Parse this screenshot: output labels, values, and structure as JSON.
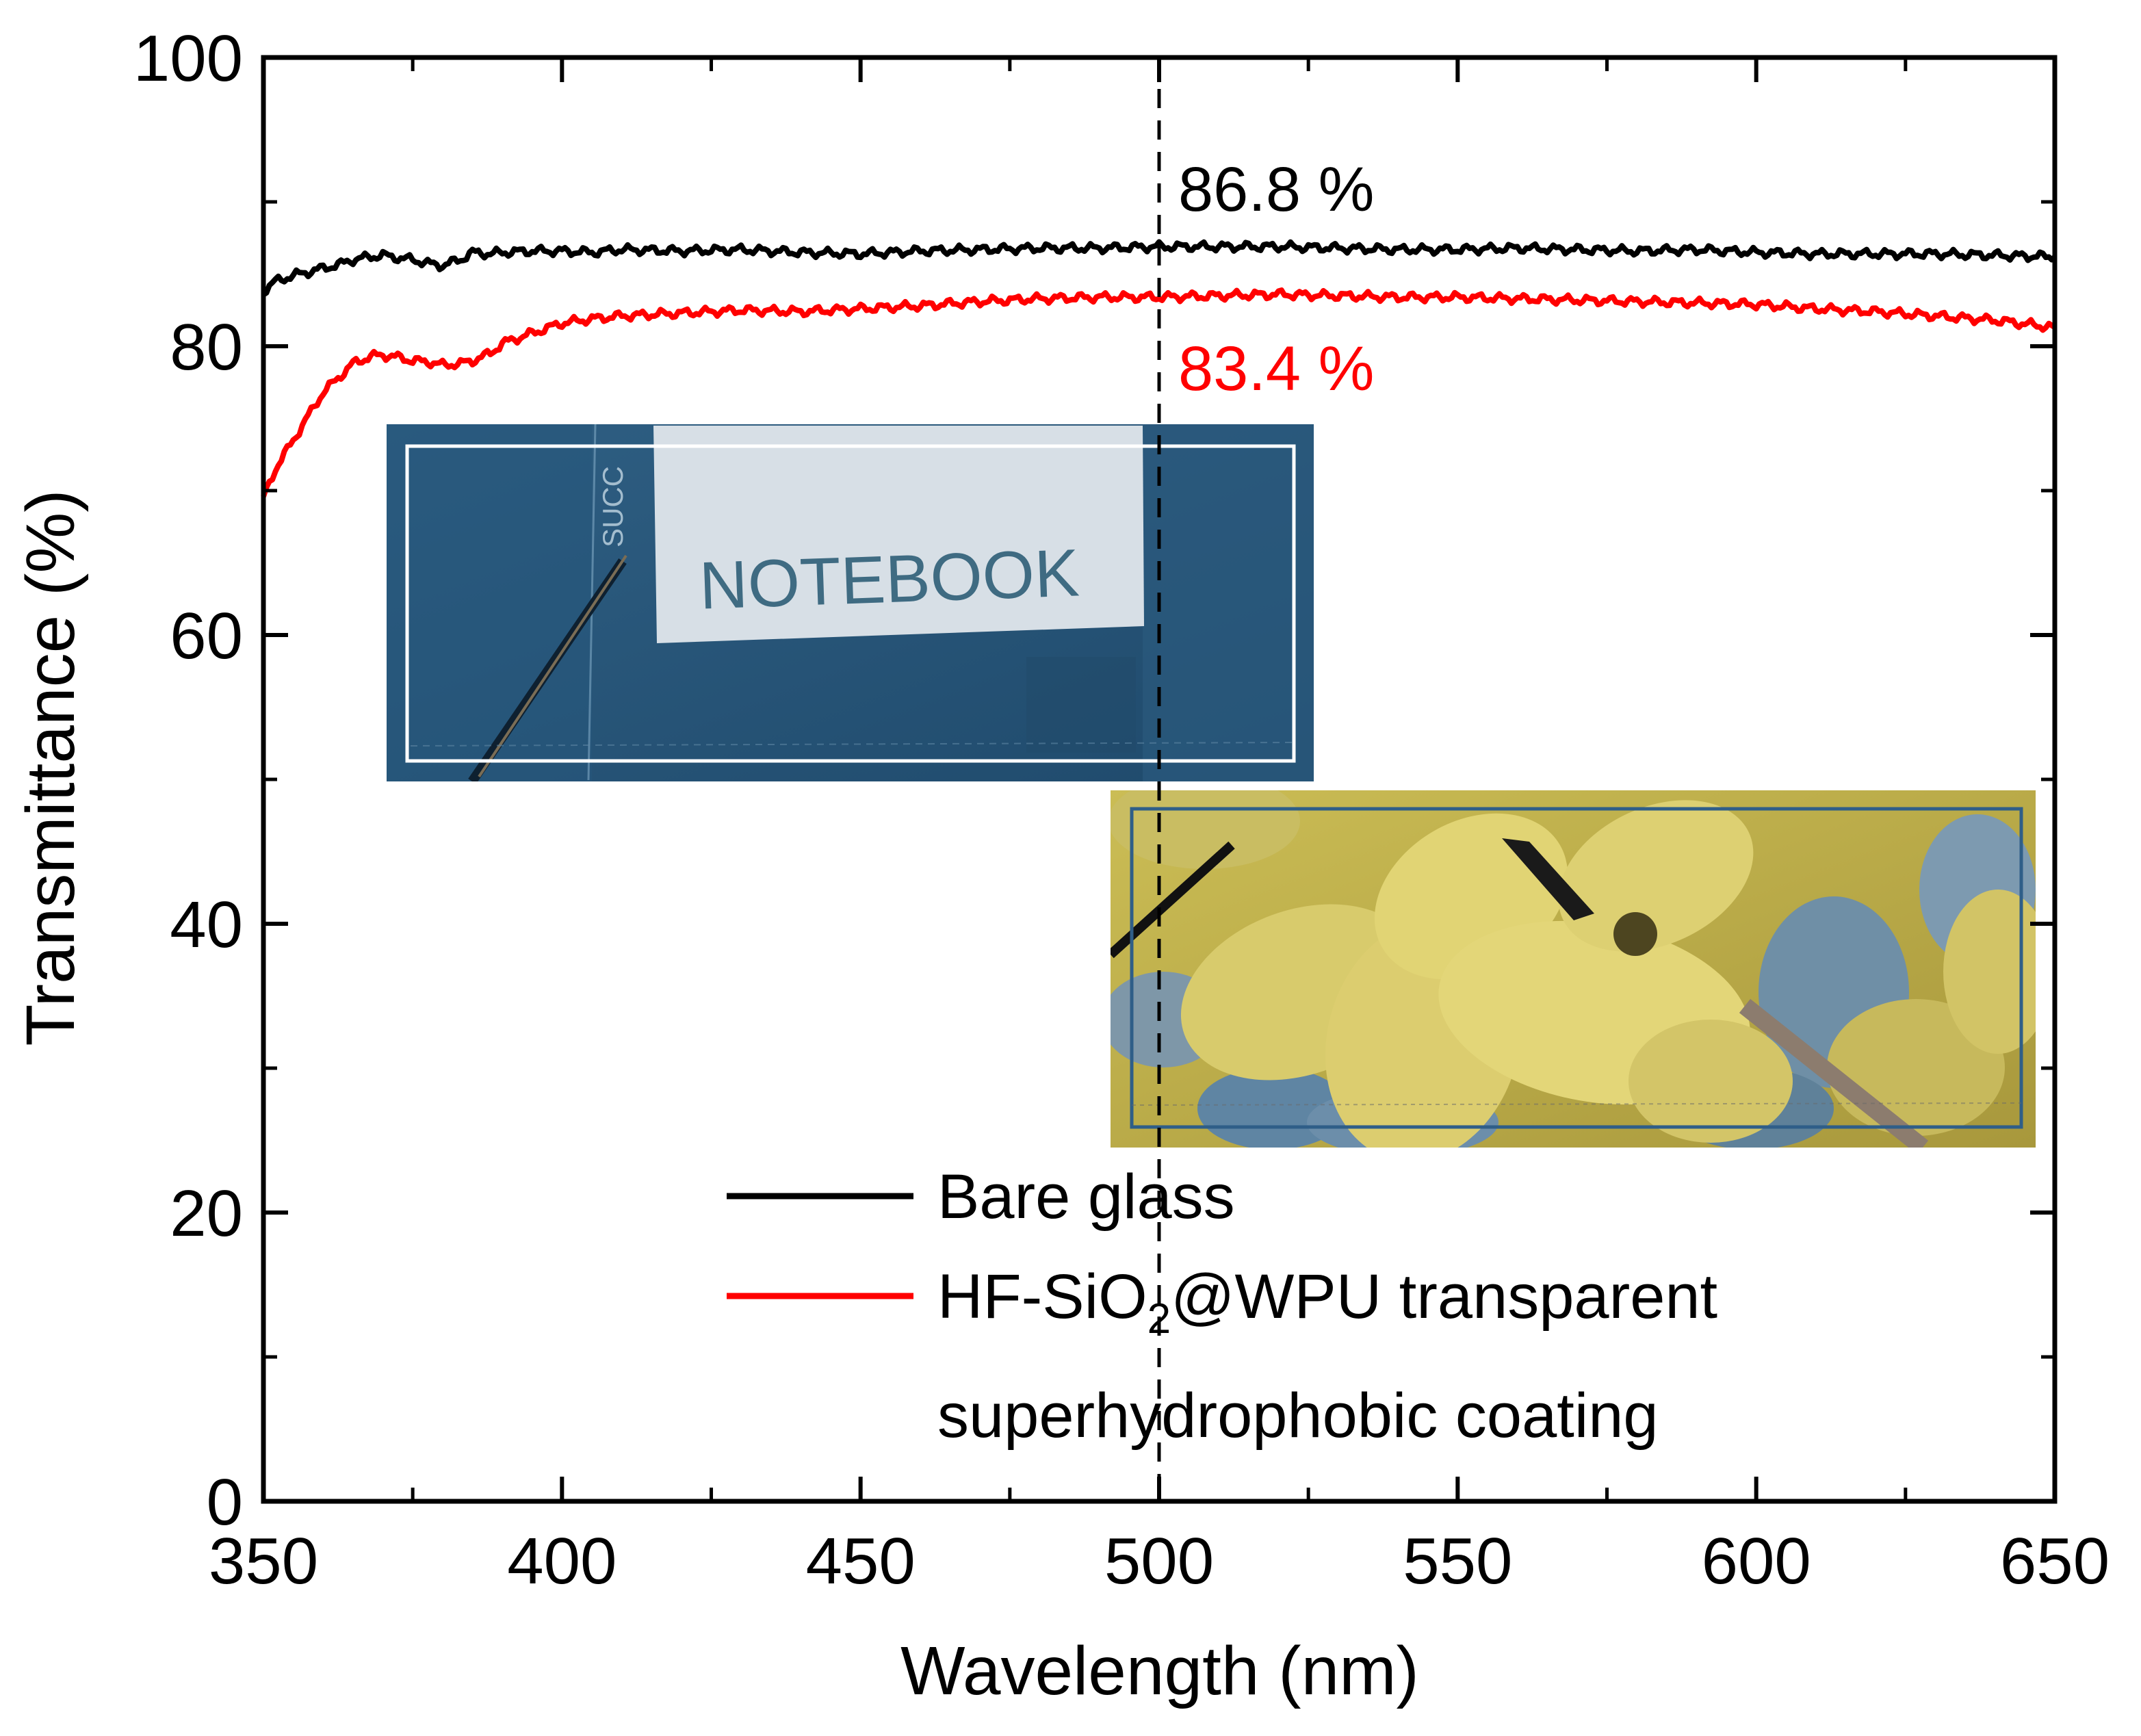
{
  "chart_data": {
    "type": "line",
    "xlabel": "Wavelength (nm)",
    "ylabel": "Transmittance (%)",
    "xlim": [
      350,
      650
    ],
    "ylim": [
      0,
      100
    ],
    "xticks": [
      350,
      400,
      450,
      500,
      550,
      600,
      650
    ],
    "yticks": [
      0,
      20,
      40,
      60,
      80,
      100
    ],
    "reference_line": {
      "x": 500,
      "style": "dashed"
    },
    "grid": false,
    "legend_position": "bottom-right",
    "series": [
      {
        "name": "Bare glass",
        "color": "#000000",
        "x": [
          350,
          352,
          355,
          358,
          360,
          363,
          365,
          368,
          370,
          373,
          375,
          378,
          380,
          383,
          385,
          388,
          390,
          395,
          400,
          405,
          410,
          420,
          430,
          440,
          450,
          460,
          470,
          480,
          490,
          500,
          510,
          520,
          530,
          540,
          550,
          560,
          570,
          580,
          590,
          600,
          610,
          620,
          630,
          640,
          650
        ],
        "y": [
          83.8,
          84.5,
          84.9,
          85.2,
          85.4,
          85.7,
          86.0,
          86.2,
          86.3,
          86.1,
          86.0,
          85.7,
          85.6,
          86.0,
          86.5,
          86.4,
          86.5,
          86.6,
          86.6,
          86.5,
          86.7,
          86.6,
          86.7,
          86.5,
          86.4,
          86.6,
          86.7,
          86.8,
          86.8,
          86.9,
          86.9,
          86.9,
          86.8,
          86.7,
          86.7,
          86.8,
          86.7,
          86.6,
          86.7,
          86.5,
          86.4,
          86.4,
          86.4,
          86.3,
          86.2
        ]
      },
      {
        "name_line1": "HF-SiO",
        "name_sub": "2",
        "name_line1_rest": "@WPU transparent",
        "name_line2": "superhydrophobic coating",
        "color": "#ff0000",
        "x": [
          350,
          352,
          355,
          358,
          360,
          363,
          365,
          368,
          370,
          373,
          375,
          378,
          380,
          383,
          385,
          388,
          390,
          395,
          400,
          405,
          410,
          420,
          430,
          440,
          450,
          460,
          470,
          480,
          490,
          500,
          510,
          520,
          530,
          540,
          550,
          560,
          570,
          580,
          590,
          600,
          610,
          620,
          630,
          640,
          650
        ],
        "y": [
          69.5,
          71.5,
          73.5,
          75.5,
          76.8,
          78.0,
          78.8,
          79.3,
          79.4,
          79.2,
          79.0,
          78.9,
          78.7,
          78.8,
          79.0,
          79.5,
          80.2,
          80.9,
          81.6,
          81.9,
          82.1,
          82.3,
          82.5,
          82.4,
          82.6,
          82.8,
          83.1,
          83.3,
          83.4,
          83.4,
          83.5,
          83.6,
          83.5,
          83.4,
          83.4,
          83.3,
          83.2,
          83.1,
          83.0,
          82.9,
          82.6,
          82.4,
          82.1,
          81.8,
          81.3
        ]
      }
    ],
    "annotations": [
      {
        "text": "86.8 %",
        "color": "#000000"
      },
      {
        "text": "83.4 %",
        "color": "#ff0000"
      }
    ]
  },
  "insets": {
    "top": {
      "label": "SUCC",
      "sign": "NOTEBOOK"
    },
    "bottom": {
      "subject": "yellow flowers"
    }
  },
  "legend": {
    "bare": "Bare glass",
    "coating_part1": "HF-SiO",
    "coating_sub": "2",
    "coating_part2": "@WPU transparent",
    "coating_line2": "superhydrophobic coating"
  }
}
